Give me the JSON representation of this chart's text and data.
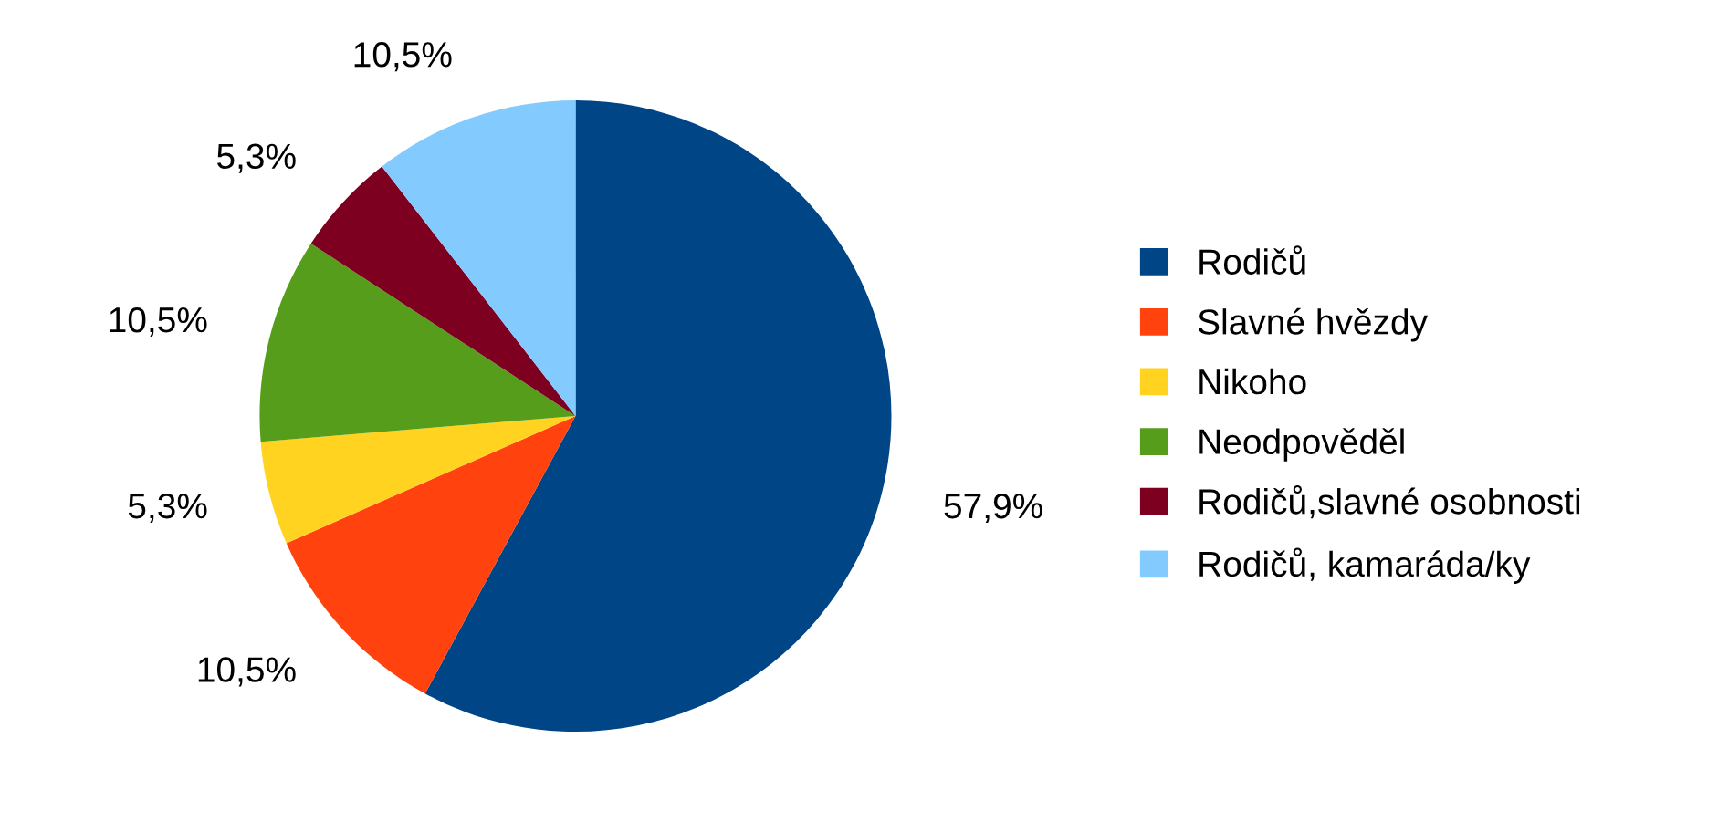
{
  "chart_data": {
    "type": "pie",
    "categories": [
      "Rodičů",
      "Slavné hvězdy",
      "Nikoho",
      "Neodpověděl",
      "Rodičů,slavné osobnosti",
      "Rodičů, kamaráda/ky"
    ],
    "values": [
      57.9,
      10.5,
      5.3,
      10.5,
      5.3,
      10.5
    ],
    "value_labels": [
      "57,9%",
      "10,5%",
      "5,3%",
      "10,5%",
      "5,3%",
      "10,5%"
    ],
    "colors": [
      "#004586",
      "#ff420e",
      "#ffd320",
      "#579d1c",
      "#7e0021",
      "#83caff"
    ],
    "legend": "right"
  }
}
